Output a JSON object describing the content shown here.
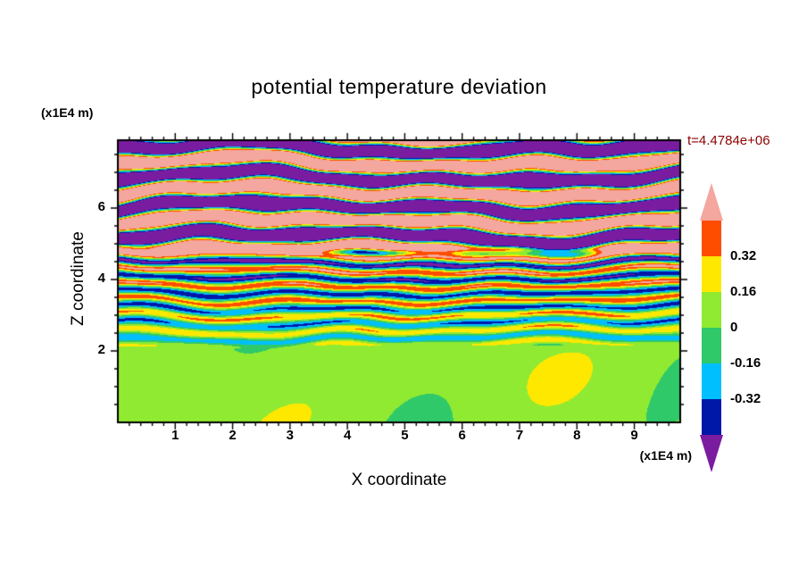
{
  "chart": {
    "title": "potential temperature deviation",
    "time_label": "t=4.4784e+06",
    "x_axis": {
      "label": "X coordinate",
      "units": "(x1E4 m)",
      "ticks": [
        "1",
        "2",
        "3",
        "4",
        "5",
        "6",
        "7",
        "8",
        "9"
      ],
      "range": [
        0,
        9.8
      ],
      "minor_step": 0.2
    },
    "z_axis": {
      "label": "Z coordinate",
      "units": "(x1E4 m)",
      "ticks": [
        "2",
        "4",
        "6"
      ],
      "range": [
        0,
        7.9
      ],
      "minor_step": 0.5
    },
    "colors": {
      "text": "#000000",
      "time_label": "#8b0000",
      "frame": "#000000",
      "background": "#ffffff"
    }
  },
  "chart_data": {
    "type": "heatmap",
    "title": "potential temperature deviation",
    "xlabel": "X coordinate (x1E4 m)",
    "ylabel": "Z coordinate (x1E4 m)",
    "time": "t=4.4784e+06",
    "x_range": [
      0,
      9.8
    ],
    "z_range": [
      0,
      7.9
    ],
    "x_major_ticks": [
      1,
      2,
      3,
      4,
      5,
      6,
      7,
      8,
      9
    ],
    "z_major_ticks": [
      2,
      4,
      6
    ],
    "contour_interval": 0.16,
    "levels_ascending": [
      -0.48,
      -0.32,
      -0.16,
      0,
      0.16,
      0.32,
      0.48
    ],
    "palette_ascending": [
      "#7a1ca0",
      "#0018a8",
      "#00bfff",
      "#2fc96a",
      "#90ea32",
      "#ffe800",
      "#ff4d00",
      "#f3a79f"
    ],
    "colorbar": {
      "boundary_labels": [
        "0.32",
        "0.16",
        "0",
        "-0.16",
        "-0.32"
      ],
      "colors_top_to_bottom": [
        {
          "name": "over-range-pink",
          "hex": "#f3a79f",
          "shape": "up-arrow"
        },
        {
          "name": "red-orange",
          "hex": "#ff4d00"
        },
        {
          "name": "yellow",
          "hex": "#ffe800"
        },
        {
          "name": "yellow-green",
          "hex": "#90ea32"
        },
        {
          "name": "green",
          "hex": "#2fc96a"
        },
        {
          "name": "cyan",
          "hex": "#00bfff"
        },
        {
          "name": "navy-blue",
          "hex": "#0018a8"
        },
        {
          "name": "under-range-purple",
          "hex": "#7a1ca0",
          "shape": "down-arrow"
        }
      ],
      "legend_position": "right"
    },
    "structure": {
      "upper_layer": {
        "z_min": 4.6,
        "z_max": 7.9,
        "description": "alternating wavy horizontal bands of strong positive (pink, >0.32) and strong negative (purple, <-0.32) deviation with thin multicolour fringes",
        "band_wavelength": 0.82,
        "amplitude": 1.3
      },
      "middle_layer": {
        "z_min": 2.05,
        "z_max": 4.6,
        "description": "fine braided turbulent stripes cycling through all contour levels; strongest (red/navy) streaks near z=4-4.5",
        "stripe_wavelength": 0.42,
        "amp_min": 0.22,
        "amp_max": 0.55
      },
      "lower_layer": {
        "z_min": 0,
        "z_max": 2.05,
        "description": "weak positive background (yellow-green, 0 to 0.16) with broad patches of weak negative (green, -0.16 to 0)",
        "mean": 0.06,
        "amplitude": 0.075
      }
    }
  }
}
